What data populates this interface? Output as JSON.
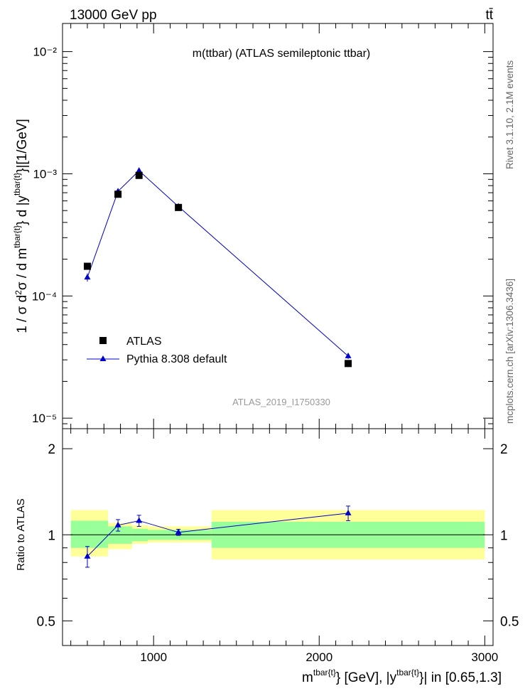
{
  "header": {
    "energy_label": "13000 GeV pp",
    "process_label": "tt̄"
  },
  "side_labels": {
    "rivet": "Rivet 3.1.10,  2.1M events",
    "mcplots": "mcplots.cern.ch [arXiv:1306.3436]"
  },
  "colors": {
    "data": "#000000",
    "mc": "#0000cc",
    "band_inner": "#99ff99",
    "band_outer": "#ffff99",
    "watermark": "#999999"
  },
  "chart_data": [
    {
      "type": "scatter",
      "panel": "main",
      "title": "m(ttbar) (ATLAS semileptonic ttbar)",
      "watermark": "ATLAS_2019_I1750330",
      "ylabel": "1 / σ d²σ / d m^{tbar{t}} d |y^{tbar{t}}|[1/GeV]",
      "yscale": "log",
      "ylim": [
        8.2e-06,
        0.017
      ],
      "xlim": [
        450,
        3050
      ],
      "ytick_labels": [
        "10⁻⁵",
        "10⁻⁴",
        "10⁻³",
        "10⁻²"
      ],
      "ytick_values": [
        1e-05,
        0.0001,
        0.001,
        0.01
      ],
      "legend_position": "lower-left",
      "series": [
        {
          "name": "ATLAS",
          "marker": "square",
          "x": [
            600,
            785,
            912,
            1150,
            2175
          ],
          "y": [
            0.000175,
            0.00068,
            0.00097,
            0.00053,
            2.8e-05
          ]
        },
        {
          "name": "Pythia 8.308 default",
          "marker": "triangle",
          "x": [
            600,
            785,
            912,
            1150,
            2175
          ],
          "y": [
            0.000142,
            0.000718,
            0.00106,
            0.00054,
            3.22e-05
          ],
          "yerr": [
            1.1e-05,
            2e-05,
            2e-05,
            1e-05,
            1.7e-06
          ]
        }
      ]
    },
    {
      "type": "scatter",
      "panel": "ratio",
      "ylabel": "Ratio to ATLAS",
      "xlabel": "m^{tbar{t}} [GeV], |y^{tbar{t}}| in [0.65,1.3]",
      "yscale": "log",
      "ylim": [
        0.41,
        2.35
      ],
      "xlim": [
        450,
        3050
      ],
      "xtick_labels": [
        "1000",
        "2000",
        "3000"
      ],
      "xtick_values": [
        1000,
        2000,
        3000
      ],
      "ytick_labels": [
        "0.5",
        "1",
        "2"
      ],
      "ytick_values": [
        0.5,
        1,
        2
      ],
      "bands": [
        {
          "x0": 500,
          "x1": 725,
          "inner": [
            0.9,
            1.12
          ],
          "outer": [
            0.84,
            1.22
          ]
        },
        {
          "x0": 725,
          "x1": 870,
          "inner": [
            0.93,
            1.07
          ],
          "outer": [
            0.89,
            1.1
          ]
        },
        {
          "x0": 870,
          "x1": 965,
          "inner": [
            0.95,
            1.05
          ],
          "outer": [
            0.93,
            1.08
          ]
        },
        {
          "x0": 965,
          "x1": 1350,
          "inner": [
            0.96,
            1.04
          ],
          "outer": [
            0.94,
            1.07
          ]
        },
        {
          "x0": 1350,
          "x1": 3000,
          "inner": [
            0.9,
            1.11
          ],
          "outer": [
            0.82,
            1.22
          ]
        }
      ],
      "series": [
        {
          "name": "Pythia 8.308 default",
          "x": [
            600,
            785,
            912,
            1150,
            2175
          ],
          "y": [
            0.84,
            1.08,
            1.12,
            1.02,
            1.19
          ],
          "yerr": [
            0.07,
            0.05,
            0.05,
            0.025,
            0.07
          ]
        }
      ]
    }
  ]
}
